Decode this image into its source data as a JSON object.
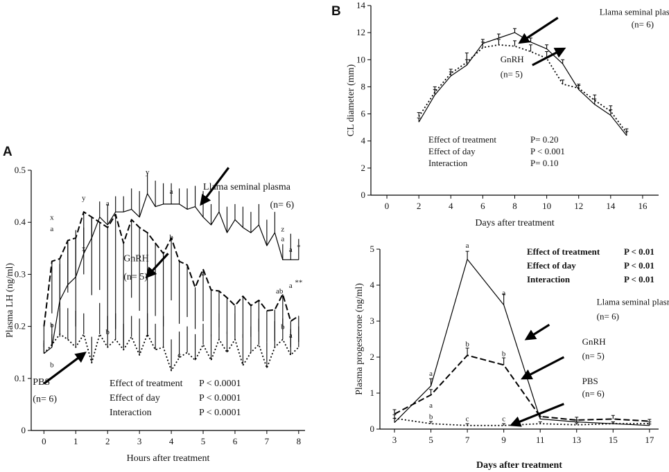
{
  "figure": {
    "panel_letters": [
      "A",
      "B"
    ]
  },
  "chart_data": [
    {
      "panel": "A",
      "type": "line",
      "xlabel": "Hours after treatment",
      "ylabel": "Plasma LH (ng/ml)",
      "xlim": [
        -0.4,
        8.2
      ],
      "ylim": [
        0,
        0.5
      ],
      "xticks": [
        "0",
        "1",
        "2",
        "3",
        "4",
        "5",
        "6",
        "7",
        "8"
      ],
      "yticks": [
        "0",
        "0.1",
        "0.2",
        "0.3",
        "0.4",
        "0.5"
      ],
      "series": [
        {
          "name": "Llama seminal plasma",
          "style": "solid",
          "error_dir": 1,
          "x": [
            0,
            0.25,
            0.5,
            0.75,
            1,
            1.25,
            1.5,
            1.75,
            2,
            2.25,
            2.5,
            2.75,
            3,
            3.25,
            3.5,
            3.75,
            4,
            4.25,
            4.5,
            4.75,
            5,
            5.25,
            5.5,
            5.75,
            6,
            6.25,
            6.5,
            6.75,
            7,
            7.25,
            7.5,
            7.75,
            8
          ],
          "y": [
            0.148,
            0.16,
            0.25,
            0.28,
            0.295,
            0.34,
            0.37,
            0.41,
            0.395,
            0.42,
            0.42,
            0.425,
            0.41,
            0.455,
            0.43,
            0.435,
            0.435,
            0.435,
            0.425,
            0.43,
            0.41,
            0.395,
            0.42,
            0.38,
            0.405,
            0.39,
            0.38,
            0.395,
            0.355,
            0.38,
            0.328,
            0.328,
            0.328
          ],
          "err": [
            0.025,
            0.025,
            0.07,
            0.08,
            0.09,
            0.05,
            0.04,
            0.03,
            0.04,
            0.03,
            0.03,
            0.04,
            0.05,
            0.04,
            0.05,
            0.04,
            0.04,
            0.03,
            0.04,
            0.04,
            0.05,
            0.04,
            0.04,
            0.05,
            0.03,
            0.04,
            0.04,
            0.04,
            0.05,
            0.04,
            0.03,
            0.05,
            0.04
          ]
        },
        {
          "name": "GnRH",
          "style": "dashed",
          "error_dir": -1,
          "x": [
            0,
            0.25,
            0.5,
            0.75,
            1,
            1.25,
            1.5,
            1.75,
            2,
            2.25,
            2.5,
            2.75,
            3,
            3.25,
            3.5,
            3.75,
            4,
            4.25,
            4.5,
            4.75,
            5,
            5.25,
            5.5,
            5.75,
            6,
            6.25,
            6.5,
            6.75,
            7,
            7.25,
            7.5,
            7.75,
            8
          ],
          "y": [
            0.2,
            0.325,
            0.33,
            0.365,
            0.37,
            0.42,
            0.41,
            0.4,
            0.39,
            0.415,
            0.36,
            0.405,
            0.39,
            0.38,
            0.36,
            0.34,
            0.37,
            0.325,
            0.318,
            0.275,
            0.31,
            0.27,
            0.268,
            0.255,
            0.24,
            0.258,
            0.24,
            0.25,
            0.23,
            0.232,
            0.262,
            0.21,
            0.22
          ],
          "err": [
            0.04,
            0.1,
            0.15,
            0.1,
            0.17,
            0.12,
            0.15,
            0.13,
            0.2,
            0.22,
            0.2,
            0.15,
            0.16,
            0.2,
            0.14,
            0.14,
            0.12,
            0.12,
            0.1,
            0.08,
            0.1,
            0.09,
            0.07,
            0.07,
            0.06,
            0.08,
            0.06,
            0.06,
            0.06,
            0.06,
            0.06,
            0.05,
            0.05
          ]
        },
        {
          "name": "PBS",
          "style": "dotted",
          "error_dir": 1,
          "x": [
            0,
            0.25,
            0.5,
            0.75,
            1,
            1.25,
            1.5,
            1.75,
            2,
            2.25,
            2.5,
            2.75,
            3,
            3.25,
            3.5,
            3.75,
            4,
            4.25,
            4.5,
            4.75,
            5,
            5.25,
            5.5,
            5.75,
            6,
            6.25,
            6.5,
            6.75,
            7,
            7.25,
            7.5,
            7.75,
            8
          ],
          "y": [
            0.148,
            0.165,
            0.185,
            0.175,
            0.16,
            0.185,
            0.13,
            0.185,
            0.16,
            0.175,
            0.155,
            0.18,
            0.145,
            0.185,
            0.155,
            0.16,
            0.115,
            0.14,
            0.15,
            0.135,
            0.165,
            0.135,
            0.175,
            0.15,
            0.175,
            0.125,
            0.15,
            0.165,
            0.12,
            0.16,
            0.175,
            0.145,
            0.16
          ],
          "err": [
            0.02,
            0.04,
            0.05,
            0.06,
            0.07,
            0.04,
            0.05,
            0.06,
            0.06,
            0.05,
            0.05,
            0.04,
            0.07,
            0.04,
            0.05,
            0.06,
            0.06,
            0.05,
            0.05,
            0.05,
            0.04,
            0.05,
            0.05,
            0.04,
            0.05,
            0.06,
            0.05,
            0.05,
            0.05,
            0.05,
            0.04,
            0.05,
            0.04
          ]
        }
      ],
      "annotations": [
        {
          "text": "x",
          "x": 0.25,
          "y": 0.405
        },
        {
          "text": "a",
          "x": 0.25,
          "y": 0.383
        },
        {
          "text": "y",
          "x": 1.25,
          "y": 0.442
        },
        {
          "text": "x",
          "x": 1.25,
          "y": 0.345
        },
        {
          "text": "a",
          "x": 2.0,
          "y": 0.432
        },
        {
          "text": "y",
          "x": 3.25,
          "y": 0.492
        },
        {
          "text": "a",
          "x": 4.0,
          "y": 0.455
        },
        {
          "text": "b",
          "x": 4.0,
          "y": 0.367
        },
        {
          "text": "z",
          "x": 5.0,
          "y": 0.298
        },
        {
          "text": "z",
          "x": 7.5,
          "y": 0.382
        },
        {
          "text": "a",
          "x": 7.5,
          "y": 0.364
        },
        {
          "text": "a",
          "x": 7.75,
          "y": 0.343
        },
        {
          "text": "*",
          "x": 8.0,
          "y": 0.348
        },
        {
          "text": "ab",
          "x": 7.4,
          "y": 0.263
        },
        {
          "text": "a",
          "x": 7.75,
          "y": 0.274
        },
        {
          "text": "**",
          "x": 8.0,
          "y": 0.28
        },
        {
          "text": "b",
          "x": 0.25,
          "y": 0.198
        },
        {
          "text": "b",
          "x": 0.25,
          "y": 0.122
        },
        {
          "text": "b",
          "x": 2.0,
          "y": 0.185
        },
        {
          "text": "c",
          "x": 4.25,
          "y": 0.14
        },
        {
          "text": "b",
          "x": 7.5,
          "y": 0.195
        },
        {
          "text": "a",
          "x": 7.75,
          "y": 0.178
        }
      ],
      "legend_labels": [
        {
          "text": "Llama seminal plasma",
          "x": 5.0,
          "y": 0.463
        },
        {
          "text": "(n= 6)",
          "x": 7.1,
          "y": 0.428
        },
        {
          "text": "GnRH",
          "x": 2.5,
          "y": 0.325
        },
        {
          "text": "(n= 5)",
          "x": 2.5,
          "y": 0.29
        },
        {
          "text": "PBS",
          "x": -0.35,
          "y": 0.088
        },
        {
          "text": "(n= 6)",
          "x": -0.35,
          "y": 0.055
        }
      ],
      "arrows": [
        {
          "from": [
            5.8,
            0.505
          ],
          "to": [
            5.0,
            0.44
          ]
        },
        {
          "from": [
            3.9,
            0.34
          ],
          "to": [
            3.3,
            0.3
          ]
        },
        {
          "from": [
            0.0,
            0.09
          ],
          "to": [
            1.2,
            0.145
          ]
        }
      ],
      "stats": [
        {
          "label": "Effect of treatment",
          "value": "P < 0.0001"
        },
        {
          "label": "Effect of day",
          "value": "P < 0.0001"
        },
        {
          "label": "Interaction",
          "value": "P < 0.0001"
        }
      ]
    },
    {
      "panel": "B-top",
      "type": "line",
      "xlabel": "Days after treatment",
      "ylabel": "CL diameter (mm)",
      "xlim": [
        -1,
        17
      ],
      "ylim": [
        0,
        14
      ],
      "xticks": [
        "0",
        "2",
        "4",
        "6",
        "8",
        "10",
        "12",
        "14",
        "16"
      ],
      "yticks": [
        "0",
        "2",
        "4",
        "6",
        "8",
        "10",
        "12",
        "14"
      ],
      "series": [
        {
          "name": "Llama seminal plasma",
          "style": "solid",
          "error_dir": 1,
          "x": [
            2,
            3,
            4,
            5,
            6,
            7,
            8,
            9,
            10,
            11,
            12,
            13,
            14,
            15
          ],
          "y": [
            5.4,
            7.4,
            8.8,
            9.6,
            11.2,
            11.6,
            12.0,
            11.3,
            10.8,
            9.7,
            7.8,
            6.7,
            5.9,
            4.4
          ],
          "err": [
            0.3,
            0.4,
            0.3,
            0.4,
            0.3,
            0.3,
            0.3,
            0.3,
            0.3,
            0.3,
            0.3,
            0.4,
            0.4,
            0.3
          ]
        },
        {
          "name": "GnRH",
          "style": "dotted",
          "error_dir": 1,
          "x": [
            2,
            3,
            4,
            5,
            6,
            7,
            8,
            9,
            10,
            11,
            12,
            13,
            14,
            15
          ],
          "y": [
            5.8,
            7.6,
            9.0,
            9.8,
            10.9,
            11.1,
            11.0,
            10.6,
            10.1,
            8.2,
            7.9,
            7.0,
            6.2,
            4.6
          ],
          "err": [
            0.3,
            0.4,
            0.3,
            0.7,
            0.4,
            0.4,
            0.4,
            0.5,
            0.5,
            0.3,
            0.3,
            0.4,
            0.4,
            0.3
          ]
        }
      ],
      "annotations": [],
      "legend_labels": [
        {
          "text": "Llama seminal plasma",
          "x": 13.3,
          "y": 13.3
        },
        {
          "text": "(n= 6)",
          "x": 15.3,
          "y": 12.4
        },
        {
          "text": "GnRH",
          "x": 7.1,
          "y": 9.8
        },
        {
          "text": "(n= 5)",
          "x": 7.1,
          "y": 8.7
        }
      ],
      "arrows": [
        {
          "from": [
            10.7,
            13.1
          ],
          "to": [
            8.5,
            11.4
          ]
        },
        {
          "from": [
            9.1,
            9.6
          ],
          "to": [
            10.9,
            10.7
          ]
        }
      ],
      "stats": [
        {
          "label": "Effect of treatment",
          "value": "P= 0.20"
        },
        {
          "label": "Effect of day",
          "value": "P < 0.001"
        },
        {
          "label": "Interaction",
          "value": "P= 0.10"
        }
      ]
    },
    {
      "panel": "B-bottom",
      "type": "line",
      "xlabel": "Days after treatment",
      "ylabel": "Plasma progesterone (ng/ml)",
      "xlim": [
        2.2,
        17.5
      ],
      "ylim": [
        0,
        5
      ],
      "xticks": [
        "3",
        "5",
        "7",
        "9",
        "11",
        "13",
        "15",
        "17"
      ],
      "yticks": [
        "0",
        "1",
        "2",
        "3",
        "4",
        "5"
      ],
      "series": [
        {
          "name": "Llama seminal plasma",
          "style": "solid",
          "error_dir": 1,
          "x": [
            3,
            5,
            7,
            9,
            11,
            13,
            15,
            17
          ],
          "y": [
            0.18,
            1.2,
            4.72,
            3.45,
            0.28,
            0.2,
            0.15,
            0.1
          ],
          "err": [
            0.12,
            0.2,
            0.22,
            0.3,
            0.07,
            0.05,
            0.05,
            0.04
          ]
        },
        {
          "name": "GnRH",
          "style": "dashed",
          "error_dir": 1,
          "x": [
            3,
            5,
            7,
            9,
            11,
            13,
            15,
            17
          ],
          "y": [
            0.42,
            0.95,
            2.05,
            1.78,
            0.35,
            0.25,
            0.28,
            0.22
          ],
          "err": [
            0.12,
            0.15,
            0.2,
            0.2,
            0.1,
            0.08,
            0.1,
            0.05
          ]
        },
        {
          "name": "PBS",
          "style": "dotted",
          "error_dir": 1,
          "x": [
            3,
            5,
            7,
            9,
            11,
            13,
            15,
            17
          ],
          "y": [
            0.3,
            0.15,
            0.1,
            0.1,
            0.15,
            0.12,
            0.15,
            0.15
          ],
          "err": [
            0.1,
            0.06,
            0.05,
            0.05,
            0.05,
            0.05,
            0.05,
            0.05
          ]
        }
      ],
      "annotations": [
        {
          "text": "a",
          "x": 7.0,
          "y": 5.04
        },
        {
          "text": "a",
          "x": 9.0,
          "y": 3.72
        },
        {
          "text": "a",
          "x": 5.0,
          "y": 1.48
        },
        {
          "text": "a",
          "x": 5.0,
          "y": 0.6
        },
        {
          "text": "b",
          "x": 7.0,
          "y": 2.3
        },
        {
          "text": "b",
          "x": 9.0,
          "y": 2.03
        },
        {
          "text": "b",
          "x": 5.0,
          "y": 0.28
        },
        {
          "text": "c",
          "x": 7.0,
          "y": 0.22
        },
        {
          "text": "c",
          "x": 9.0,
          "y": 0.22
        }
      ],
      "legend_labels": [
        {
          "text": "Llama seminal plasma",
          "x": 14.1,
          "y": 3.45
        },
        {
          "text": "(n= 6)",
          "x": 14.1,
          "y": 3.05
        },
        {
          "text": "GnRH",
          "x": 13.3,
          "y": 2.35
        },
        {
          "text": "(n= 5)",
          "x": 13.3,
          "y": 1.95
        },
        {
          "text": "PBS",
          "x": 13.3,
          "y": 1.25
        },
        {
          "text": "(n= 6)",
          "x": 13.3,
          "y": 0.9
        }
      ],
      "arrows": [
        {
          "from": [
            11.5,
            2.9
          ],
          "to": [
            10.4,
            2.55
          ]
        },
        {
          "from": [
            12.3,
            2.0
          ],
          "to": [
            10.2,
            1.45
          ]
        },
        {
          "from": [
            12.3,
            0.7
          ],
          "to": [
            9.6,
            0.15
          ]
        }
      ],
      "stats": [
        {
          "label": "Effect of treatment",
          "value": "P < 0.01"
        },
        {
          "label": "Effect of day",
          "value": "P < 0.01"
        },
        {
          "label": "Interaction",
          "value": "P < 0.01"
        }
      ]
    }
  ]
}
